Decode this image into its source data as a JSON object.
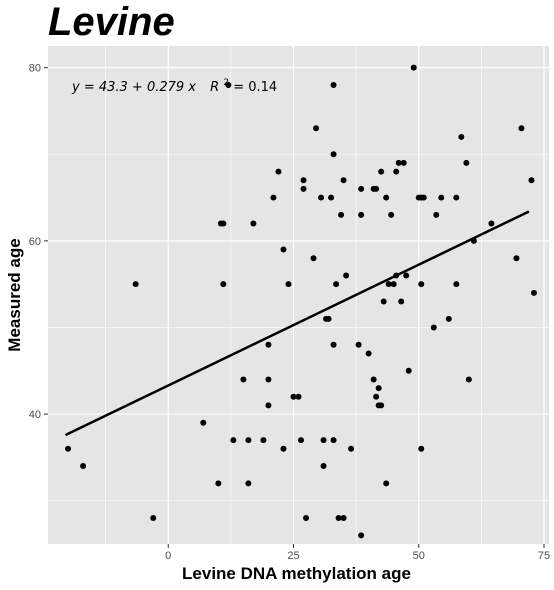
{
  "chart_data": {
    "type": "scatter",
    "title": "Levine",
    "xlabel": "Levine DNA methylation age",
    "ylabel": "Measured age",
    "xlim": [
      -24,
      76
    ],
    "ylim": [
      25,
      82.5
    ],
    "x_ticks": [
      0,
      25,
      50,
      75
    ],
    "x_tick_labels": [
      "0",
      "25",
      "50",
      "75"
    ],
    "y_ticks": [
      40,
      60,
      80
    ],
    "y_tick_labels": [
      "40",
      "60",
      "80"
    ],
    "grid": true,
    "background": "#e5e5e5",
    "grid_color": "#ffffff",
    "point_color": "#000000",
    "line_color": "#000000",
    "annotation": {
      "equation": "y = 43.3 + 0.279 x",
      "r2_label": "R",
      "r2_power": "2",
      "r2_value": " = 0.14"
    },
    "fit_line": {
      "intercept": 43.3,
      "slope": 0.279,
      "x_range": [
        -20.5,
        72
      ]
    },
    "points": [
      [
        -20,
        36
      ],
      [
        -17,
        34
      ],
      [
        -6.5,
        55
      ],
      [
        -3,
        28
      ],
      [
        7,
        39
      ],
      [
        10,
        32
      ],
      [
        10.5,
        62
      ],
      [
        11,
        62
      ],
      [
        11,
        55
      ],
      [
        12,
        78
      ],
      [
        13,
        37
      ],
      [
        15,
        44
      ],
      [
        16,
        37
      ],
      [
        16,
        32
      ],
      [
        17,
        62
      ],
      [
        19,
        37
      ],
      [
        20,
        48
      ],
      [
        20,
        44
      ],
      [
        20,
        41
      ],
      [
        21,
        65
      ],
      [
        22,
        68
      ],
      [
        23,
        36
      ],
      [
        23,
        59
      ],
      [
        24,
        55
      ],
      [
        25,
        42
      ],
      [
        26,
        42
      ],
      [
        26.5,
        37
      ],
      [
        27,
        67
      ],
      [
        27,
        66
      ],
      [
        27.5,
        28
      ],
      [
        29,
        58
      ],
      [
        29.5,
        73
      ],
      [
        30.5,
        65
      ],
      [
        31,
        37
      ],
      [
        31,
        34
      ],
      [
        31.5,
        51
      ],
      [
        32,
        51
      ],
      [
        32.5,
        65
      ],
      [
        33,
        70
      ],
      [
        33,
        48
      ],
      [
        33,
        37
      ],
      [
        33,
        78
      ],
      [
        33.5,
        55
      ],
      [
        34,
        28
      ],
      [
        34.5,
        63
      ],
      [
        35,
        28
      ],
      [
        35,
        67
      ],
      [
        35.5,
        56
      ],
      [
        36.5,
        36
      ],
      [
        38,
        48
      ],
      [
        38.5,
        66
      ],
      [
        38.5,
        63
      ],
      [
        38.5,
        26
      ],
      [
        40,
        47
      ],
      [
        41,
        44
      ],
      [
        41,
        66
      ],
      [
        41.5,
        66
      ],
      [
        41.5,
        42
      ],
      [
        42,
        41
      ],
      [
        42,
        43
      ],
      [
        42.5,
        41
      ],
      [
        42.5,
        68
      ],
      [
        43,
        53
      ],
      [
        43.5,
        65
      ],
      [
        43.5,
        32
      ],
      [
        44,
        55
      ],
      [
        44.5,
        63
      ],
      [
        45,
        55
      ],
      [
        45.5,
        56
      ],
      [
        45.5,
        68
      ],
      [
        46,
        69
      ],
      [
        46.5,
        53
      ],
      [
        47,
        69
      ],
      [
        47.5,
        56
      ],
      [
        48,
        45
      ],
      [
        49,
        80
      ],
      [
        50,
        65
      ],
      [
        50.5,
        65
      ],
      [
        50.5,
        55
      ],
      [
        50.5,
        36
      ],
      [
        51,
        65
      ],
      [
        53,
        50
      ],
      [
        53.5,
        63
      ],
      [
        54.5,
        65
      ],
      [
        56,
        51
      ],
      [
        57.5,
        65
      ],
      [
        57.5,
        55
      ],
      [
        58.5,
        72
      ],
      [
        59.5,
        69
      ],
      [
        60,
        44
      ],
      [
        61,
        60
      ],
      [
        64.5,
        62
      ],
      [
        69.5,
        58
      ],
      [
        70.5,
        73
      ],
      [
        72.5,
        67
      ],
      [
        73,
        54
      ]
    ]
  }
}
